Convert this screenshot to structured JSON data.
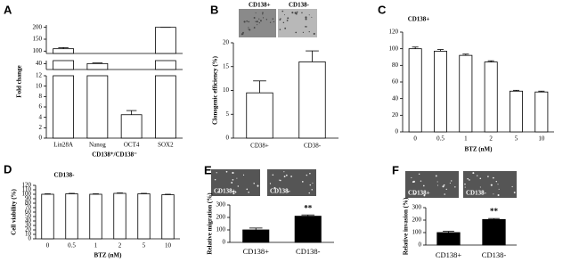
{
  "chart_data": [
    {
      "type": "bar",
      "panel": "A",
      "ylabel": "Fold change",
      "xlabel": "CD138⁺/CD138⁻",
      "categories": [
        "Lin28A",
        "Nanog",
        "OCT4",
        "SOX2"
      ],
      "values": [
        110,
        40,
        4.5,
        200
      ],
      "errors": [
        5,
        1,
        0.8,
        0
      ],
      "color": "#ffffff",
      "segments": [
        {
          "ylim": [
            0,
            12
          ],
          "yticks": [
            0,
            2,
            4,
            6,
            8,
            10,
            12
          ]
        },
        {
          "ylim": [
            30,
            45
          ],
          "yticks": [
            40
          ]
        },
        {
          "ylim": [
            90,
            210
          ],
          "yticks": [
            100,
            150,
            200
          ]
        }
      ]
    },
    {
      "type": "bar",
      "panel": "B",
      "ylabel": "Clonogenic efficiency (%)",
      "image_labels": [
        "CD138+",
        "CD138-"
      ],
      "categories": [
        "CD38+",
        "CD38-"
      ],
      "values": [
        9.5,
        16
      ],
      "errors": [
        2.5,
        2.3
      ],
      "color": "#ffffff",
      "ylim": [
        0,
        20
      ],
      "yticks": [
        0,
        5,
        10,
        15,
        20
      ]
    },
    {
      "type": "bar",
      "panel": "C",
      "title": "CD138+",
      "xlabel": "BTZ (nM)",
      "categories": [
        "0",
        "0.5",
        "1",
        "2",
        "5",
        "10"
      ],
      "values": [
        100,
        97,
        92,
        84,
        49,
        48
      ],
      "errors": [
        2,
        2,
        1.5,
        1.5,
        1,
        1
      ],
      "color": "#ffffff",
      "ylim": [
        0,
        120
      ],
      "yticks": [
        0,
        20,
        40,
        60,
        80,
        100,
        120
      ]
    },
    {
      "type": "bar",
      "panel": "D",
      "title": "CD138-",
      "ylabel": "Cell viability (%)",
      "xlabel": "BTZ (nM)",
      "categories": [
        "0",
        "0.5",
        "1",
        "2",
        "5",
        "10"
      ],
      "values": [
        100,
        101,
        100,
        102,
        101,
        99
      ],
      "errors": [
        1,
        1,
        1,
        1,
        1,
        1
      ],
      "color": "#ffffff",
      "ylim": [
        0,
        120
      ],
      "yticks": [
        0,
        10,
        20,
        30,
        40,
        50,
        60,
        70,
        80,
        90,
        100,
        110,
        120
      ]
    },
    {
      "type": "bar",
      "panel": "E",
      "ylabel": "Relative migration (%)",
      "image_labels": [
        "CD138+",
        "CD138-"
      ],
      "annotation": "**",
      "categories": [
        "CD138+",
        "CD138-"
      ],
      "values": [
        100,
        210
      ],
      "errors": [
        15,
        10
      ],
      "color": "#000000",
      "ylim": [
        0,
        300
      ],
      "yticks": [
        0,
        100,
        200,
        300
      ]
    },
    {
      "type": "bar",
      "panel": "F",
      "ylabel": "Relative invasion (%)",
      "image_labels": [
        "CD138+",
        "CD138-"
      ],
      "annotation": "**",
      "categories": [
        "CD138+",
        "CD138-"
      ],
      "values": [
        100,
        205
      ],
      "errors": [
        10,
        8
      ],
      "color": "#000000",
      "ylim": [
        0,
        300
      ],
      "yticks": [
        0,
        100,
        200,
        300
      ]
    }
  ]
}
